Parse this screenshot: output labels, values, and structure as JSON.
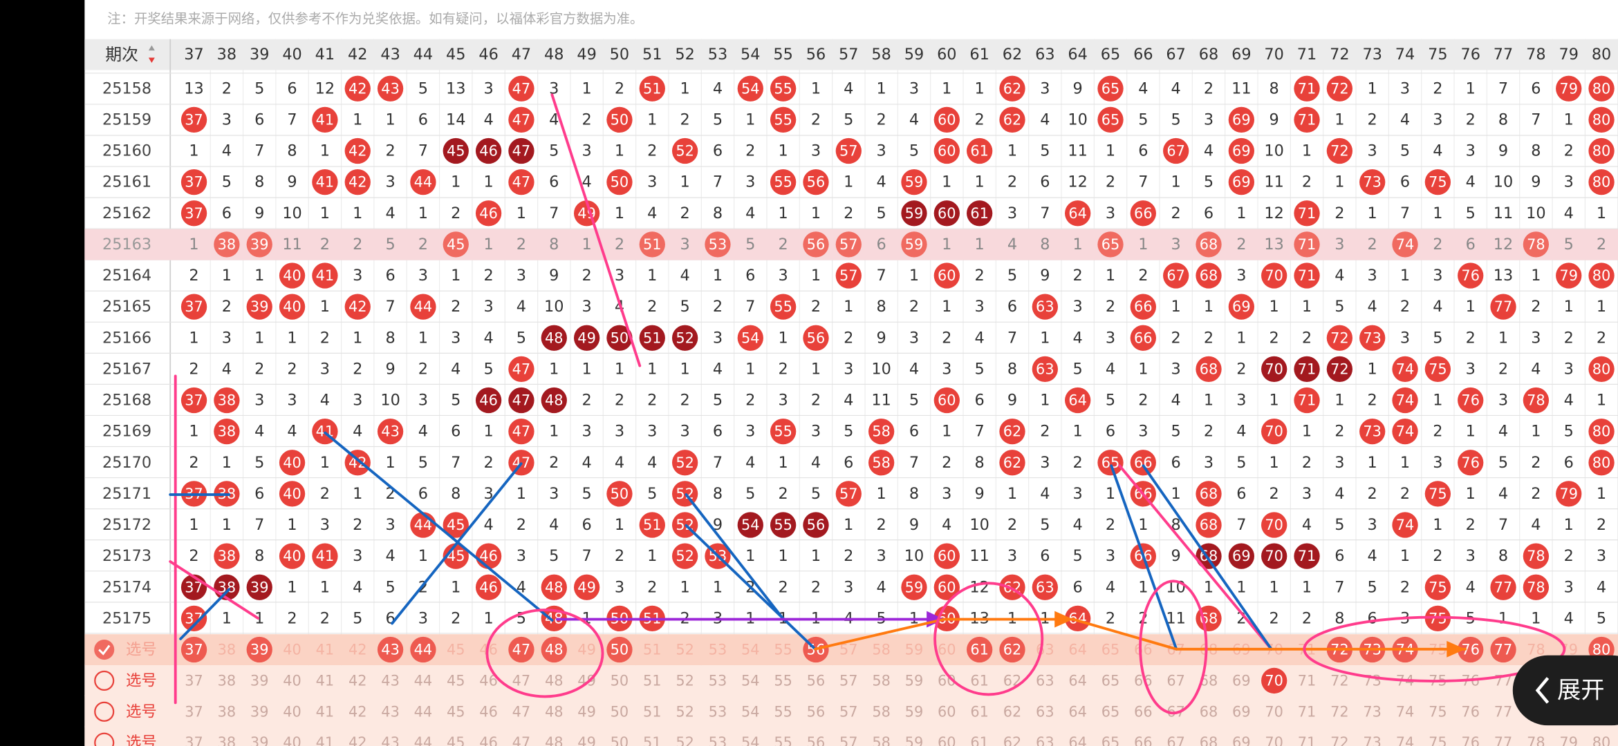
{
  "notice": "注：开奖结果来源于网络，仅供参考不作为兑奖依据。如有疑问，以福体彩官方数据为准。",
  "table": {
    "header_label": "期次",
    "columns": [
      37,
      38,
      39,
      40,
      41,
      42,
      43,
      44,
      45,
      46,
      47,
      48,
      49,
      50,
      51,
      52,
      53,
      54,
      55,
      56,
      57,
      58,
      59,
      60,
      61,
      62,
      63,
      64,
      65,
      66,
      67,
      68,
      69,
      70,
      71,
      72,
      73,
      74,
      75,
      76,
      77,
      78,
      79,
      80
    ],
    "rows": [
      {
        "issue": 25158,
        "cells": [
          13,
          2,
          5,
          6,
          12,
          42,
          43,
          5,
          13,
          3,
          47,
          3,
          1,
          2,
          51,
          1,
          4,
          54,
          55,
          1,
          4,
          1,
          3,
          1,
          1,
          62,
          3,
          9,
          65,
          4,
          4,
          2,
          11,
          8,
          71,
          72,
          1,
          3,
          2,
          1,
          7,
          6,
          79,
          80
        ]
      },
      {
        "issue": 25159,
        "cells": [
          37,
          3,
          6,
          7,
          41,
          1,
          1,
          6,
          14,
          4,
          47,
          4,
          2,
          50,
          1,
          2,
          5,
          1,
          55,
          2,
          5,
          2,
          4,
          60,
          2,
          62,
          4,
          10,
          65,
          5,
          5,
          3,
          69,
          9,
          71,
          1,
          2,
          4,
          3,
          2,
          8,
          7,
          1,
          80
        ]
      },
      {
        "issue": 25160,
        "cells": [
          1,
          4,
          7,
          8,
          1,
          42,
          2,
          7,
          45,
          46,
          47,
          5,
          3,
          1,
          2,
          52,
          6,
          2,
          1,
          3,
          57,
          3,
          5,
          60,
          61,
          1,
          5,
          11,
          1,
          6,
          67,
          4,
          69,
          10,
          1,
          72,
          3,
          5,
          4,
          3,
          9,
          8,
          2,
          80
        ]
      },
      {
        "issue": 25161,
        "cells": [
          37,
          5,
          8,
          9,
          41,
          42,
          3,
          44,
          1,
          1,
          47,
          6,
          4,
          50,
          3,
          1,
          7,
          3,
          55,
          56,
          1,
          4,
          59,
          1,
          1,
          2,
          6,
          12,
          2,
          7,
          1,
          5,
          69,
          11,
          2,
          1,
          73,
          6,
          75,
          4,
          10,
          9,
          3,
          80
        ]
      },
      {
        "issue": 25162,
        "cells": [
          37,
          6,
          9,
          10,
          1,
          1,
          4,
          1,
          2,
          46,
          1,
          7,
          49,
          1,
          4,
          2,
          8,
          4,
          1,
          1,
          2,
          5,
          59,
          60,
          61,
          3,
          7,
          64,
          3,
          66,
          2,
          6,
          1,
          12,
          71,
          2,
          1,
          7,
          1,
          5,
          11,
          10,
          4,
          1
        ]
      },
      {
        "issue": 25163,
        "highlight": true,
        "cells": [
          1,
          38,
          39,
          11,
          2,
          2,
          5,
          2,
          45,
          1,
          2,
          8,
          1,
          2,
          51,
          3,
          53,
          5,
          2,
          56,
          57,
          6,
          59,
          1,
          1,
          4,
          8,
          1,
          65,
          1,
          3,
          68,
          2,
          13,
          71,
          3,
          2,
          74,
          2,
          6,
          12,
          78,
          5,
          2
        ]
      },
      {
        "issue": 25164,
        "cells": [
          2,
          1,
          1,
          40,
          41,
          3,
          6,
          3,
          1,
          2,
          3,
          9,
          2,
          3,
          1,
          4,
          1,
          6,
          3,
          1,
          57,
          7,
          1,
          60,
          2,
          5,
          9,
          2,
          1,
          2,
          67,
          68,
          3,
          70,
          71,
          4,
          3,
          1,
          3,
          76,
          13,
          1,
          79,
          80
        ]
      },
      {
        "issue": 25165,
        "cells": [
          37,
          2,
          39,
          40,
          1,
          42,
          7,
          44,
          2,
          3,
          4,
          10,
          3,
          4,
          2,
          5,
          2,
          7,
          55,
          2,
          1,
          8,
          2,
          1,
          3,
          6,
          63,
          3,
          2,
          66,
          1,
          1,
          69,
          1,
          1,
          5,
          4,
          2,
          4,
          1,
          77,
          2,
          1,
          1
        ]
      },
      {
        "issue": 25166,
        "cells": [
          1,
          3,
          1,
          1,
          2,
          1,
          8,
          1,
          3,
          4,
          5,
          48,
          49,
          50,
          51,
          52,
          3,
          54,
          1,
          56,
          2,
          9,
          3,
          2,
          4,
          7,
          1,
          4,
          3,
          66,
          2,
          2,
          1,
          2,
          2,
          72,
          73,
          3,
          5,
          2,
          1,
          3,
          2,
          2
        ]
      },
      {
        "issue": 25167,
        "cells": [
          2,
          4,
          2,
          2,
          3,
          2,
          9,
          2,
          4,
          5,
          47,
          1,
          1,
          1,
          1,
          1,
          4,
          1,
          2,
          1,
          3,
          10,
          4,
          3,
          5,
          8,
          63,
          5,
          4,
          1,
          3,
          68,
          2,
          70,
          71,
          72,
          1,
          74,
          75,
          3,
          2,
          4,
          3,
          80
        ]
      },
      {
        "issue": 25168,
        "cells": [
          37,
          38,
          3,
          3,
          4,
          3,
          10,
          3,
          5,
          46,
          47,
          48,
          2,
          2,
          2,
          2,
          5,
          2,
          3,
          2,
          4,
          11,
          5,
          60,
          6,
          9,
          1,
          64,
          5,
          2,
          4,
          1,
          3,
          1,
          71,
          1,
          2,
          74,
          1,
          76,
          3,
          78,
          4,
          1
        ]
      },
      {
        "issue": 25169,
        "cells": [
          1,
          38,
          4,
          4,
          41,
          4,
          43,
          4,
          6,
          1,
          47,
          1,
          3,
          3,
          3,
          3,
          6,
          3,
          55,
          3,
          5,
          58,
          6,
          1,
          7,
          62,
          2,
          1,
          6,
          3,
          5,
          2,
          4,
          70,
          1,
          2,
          73,
          74,
          2,
          1,
          4,
          1,
          5,
          80
        ]
      },
      {
        "issue": 25170,
        "cells": [
          2,
          1,
          5,
          40,
          1,
          42,
          1,
          5,
          7,
          2,
          47,
          2,
          4,
          4,
          4,
          52,
          7,
          4,
          1,
          4,
          6,
          58,
          7,
          2,
          8,
          62,
          3,
          2,
          65,
          66,
          6,
          3,
          5,
          1,
          2,
          3,
          1,
          1,
          3,
          76,
          5,
          2,
          6,
          80
        ]
      },
      {
        "issue": 25171,
        "cells": [
          37,
          38,
          6,
          40,
          2,
          1,
          2,
          6,
          8,
          3,
          1,
          3,
          5,
          50,
          5,
          52,
          8,
          5,
          2,
          5,
          57,
          1,
          8,
          3,
          9,
          1,
          4,
          3,
          1,
          66,
          1,
          68,
          6,
          2,
          3,
          4,
          2,
          2,
          75,
          1,
          4,
          2,
          79,
          1
        ]
      },
      {
        "issue": 25172,
        "cells": [
          1,
          1,
          7,
          1,
          3,
          2,
          3,
          44,
          45,
          4,
          2,
          4,
          6,
          1,
          51,
          52,
          9,
          54,
          55,
          56,
          1,
          2,
          9,
          4,
          10,
          2,
          5,
          4,
          2,
          1,
          8,
          68,
          7,
          70,
          4,
          5,
          3,
          74,
          1,
          2,
          7,
          4,
          1,
          2
        ]
      },
      {
        "issue": 25173,
        "cells": [
          2,
          38,
          8,
          40,
          41,
          3,
          4,
          1,
          45,
          46,
          3,
          5,
          7,
          2,
          1,
          52,
          53,
          1,
          1,
          1,
          2,
          3,
          10,
          60,
          11,
          3,
          6,
          5,
          3,
          66,
          9,
          68,
          69,
          70,
          71,
          6,
          4,
          1,
          2,
          3,
          8,
          78,
          2,
          3
        ]
      },
      {
        "issue": 25174,
        "cells": [
          37,
          38,
          39,
          1,
          1,
          4,
          5,
          2,
          1,
          46,
          4,
          48,
          49,
          3,
          2,
          1,
          1,
          2,
          2,
          2,
          3,
          4,
          59,
          60,
          12,
          62,
          63,
          6,
          4,
          1,
          10,
          1,
          1,
          1,
          1,
          7,
          5,
          2,
          75,
          4,
          77,
          78,
          3,
          4
        ]
      },
      {
        "issue": 25175,
        "cells": [
          37,
          1,
          1,
          2,
          2,
          5,
          6,
          3,
          2,
          1,
          5,
          48,
          1,
          50,
          51,
          2,
          3,
          1,
          1,
          1,
          4,
          5,
          1,
          60,
          13,
          1,
          1,
          64,
          2,
          2,
          11,
          68,
          2,
          2,
          2,
          8,
          6,
          3,
          75,
          5,
          1,
          1,
          4,
          5
        ]
      }
    ],
    "picks": [
      {
        "label": "选号",
        "checked": true,
        "selected": [
          37,
          39,
          43,
          44,
          47,
          48,
          50,
          56,
          61,
          62,
          72,
          73,
          74,
          76,
          77,
          80
        ]
      },
      {
        "label": "选号",
        "checked": false,
        "selected": [
          70
        ]
      },
      {
        "label": "选号",
        "checked": false,
        "selected": []
      },
      {
        "label": "选号",
        "checked": false,
        "selected": []
      }
    ]
  },
  "expand_button": "展开"
}
